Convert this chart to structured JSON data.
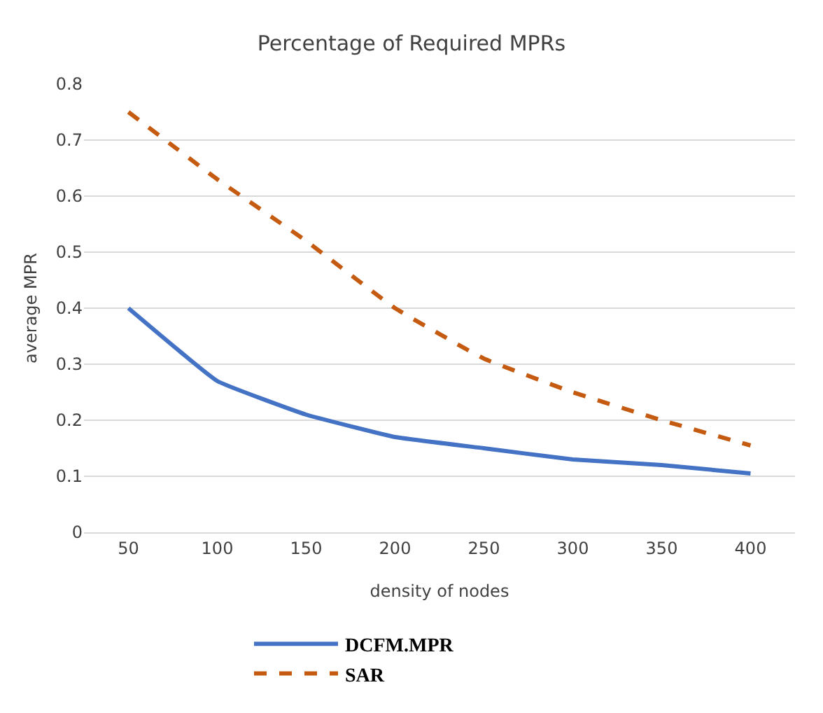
{
  "chart_data": {
    "type": "line",
    "title": "Percentage of Required MPRs",
    "xlabel": "density of nodes",
    "ylabel": "average MPR",
    "categories": [
      "50",
      "100",
      "150",
      "200",
      "250",
      "300",
      "350",
      "400"
    ],
    "series": [
      {
        "name": "DCFM.MPR",
        "color": "#4472c4",
        "line_style": "solid",
        "values": [
          0.4,
          0.27,
          0.21,
          0.17,
          0.15,
          0.13,
          0.12,
          0.105
        ]
      },
      {
        "name": "SAR",
        "color": "#c55a11",
        "line_style": "dashed",
        "values": [
          0.75,
          0.63,
          0.52,
          0.4,
          0.31,
          0.25,
          0.2,
          0.155
        ]
      }
    ],
    "ylim": [
      0,
      0.8
    ],
    "yticks": [
      0,
      0.1,
      0.2,
      0.3,
      0.4,
      0.5,
      0.6,
      0.7,
      0.8
    ],
    "grid": "y",
    "legend": "bottom",
    "marker": "none"
  }
}
